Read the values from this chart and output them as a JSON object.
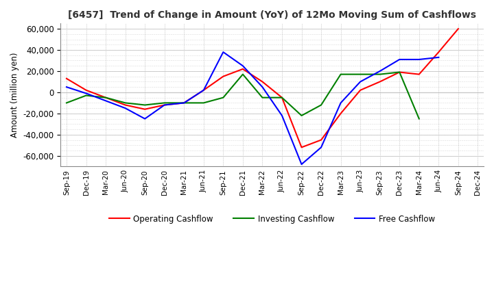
{
  "title": "[6457]  Trend of Change in Amount (YoY) of 12Mo Moving Sum of Cashflows",
  "ylabel": "Amount (million yen)",
  "ylim": [
    -70000,
    65000
  ],
  "yticks": [
    -60000,
    -40000,
    -20000,
    0,
    20000,
    40000,
    60000
  ],
  "x_labels": [
    "Sep-19",
    "Dec-19",
    "Mar-20",
    "Jun-20",
    "Sep-20",
    "Dec-20",
    "Mar-21",
    "Jun-21",
    "Sep-21",
    "Dec-21",
    "Mar-22",
    "Jun-22",
    "Sep-22",
    "Dec-22",
    "Mar-23",
    "Jun-23",
    "Sep-23",
    "Dec-23",
    "Mar-24",
    "Jun-24",
    "Sep-24",
    "Dec-24"
  ],
  "operating": [
    13000,
    2000,
    -5000,
    -12000,
    -16000,
    -12000,
    -10000,
    2000,
    15000,
    22000,
    10000,
    -5000,
    -52000,
    -45000,
    -20000,
    2000,
    10000,
    19000,
    17000,
    38000,
    60000,
    null
  ],
  "investing": [
    -10000,
    -3000,
    -5000,
    -10000,
    -12000,
    -10000,
    -10000,
    -10000,
    -5000,
    17000,
    -5000,
    -5000,
    -22000,
    -12000,
    17000,
    17000,
    17000,
    19000,
    -25000,
    null,
    null,
    null
  ],
  "free": [
    5000,
    -1000,
    -8000,
    -15000,
    -25000,
    -12000,
    -10000,
    2000,
    38000,
    25000,
    5000,
    -22000,
    -68000,
    -52000,
    -10000,
    10000,
    20000,
    31000,
    31000,
    33000,
    null,
    null
  ],
  "op_color": "#ff0000",
  "inv_color": "#008000",
  "free_color": "#0000ff",
  "background_color": "#ffffff",
  "grid_color": "#aaaaaa",
  "title_color": "#333333"
}
